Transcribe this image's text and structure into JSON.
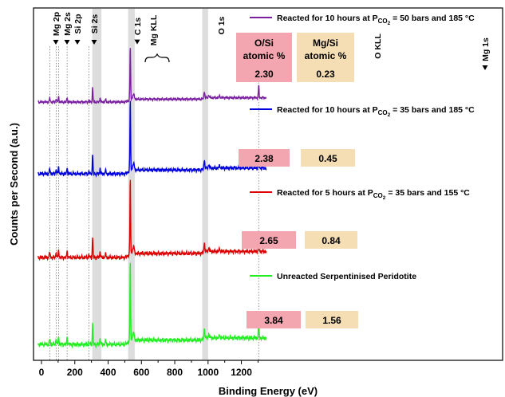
{
  "chart_data": {
    "type": "line",
    "xlabel": "Binding Energy (eV)",
    "ylabel": "Counts per Second (a.u.)",
    "xlim": [
      -20,
      1350
    ],
    "xticks": [
      0,
      200,
      400,
      600,
      800,
      1000,
      1200
    ],
    "series": [
      {
        "name_parts": {
          "pre": "Reacted for 10 hours at P",
          "sub": "CO",
          "subsub": "2",
          "post": " = 50 bars and 185 °C"
        },
        "color": "#7b1fa2",
        "ratios": {
          "O_Si": "2.30",
          "Mg_Si": "0.23"
        }
      },
      {
        "name_parts": {
          "pre": "Reacted for 10 hours at P",
          "sub": "CO",
          "subsub": "2",
          "post": " = 35 bars and 185 °C"
        },
        "color": "#0000dd",
        "ratios": {
          "O_Si": "2.38",
          "Mg_Si": "0.45"
        }
      },
      {
        "name_parts": {
          "pre": "Reacted for 5 hours at P",
          "sub": "CO",
          "subsub": "2",
          "post": " = 35 bars and 155 °C"
        },
        "color": "#dd0000",
        "ratios": {
          "O_Si": "2.65",
          "Mg_Si": "0.84"
        }
      },
      {
        "name_parts": {
          "pre": "Unreacted Serpentinised Peridotite",
          "sub": "",
          "subsub": "",
          "post": ""
        },
        "color": "#22ee22",
        "ratios": {
          "O_Si": "3.84",
          "Mg_Si": "1.56"
        }
      }
    ],
    "peaks": [
      {
        "label": "Mg 2p",
        "energy": 50,
        "style": "dotted"
      },
      {
        "label": "Mg 2s",
        "energy": 88,
        "style": "dotted"
      },
      {
        "label": "Si 2p",
        "energy": 103,
        "style": "dotted"
      },
      {
        "label": "Si 2s",
        "energy": 154,
        "style": "dotted"
      },
      {
        "label": "C 1s",
        "energy": 285,
        "style": "dotted"
      },
      {
        "label": "Mg KLL",
        "range": [
          305,
          360
        ],
        "style": "band"
      },
      {
        "label": "O 1s",
        "range": [
          520,
          560
        ],
        "style": "band"
      },
      {
        "label": "O KLL",
        "range": [
          965,
          1000
        ],
        "style": "band"
      },
      {
        "label": "Mg 1s",
        "energy": 1304,
        "style": "dotted"
      }
    ],
    "ratio_headers": {
      "O_Si": [
        "O/Si",
        "atomic %"
      ],
      "Mg_Si": [
        "Mg/Si",
        "atomic %"
      ]
    },
    "colors": {
      "ratio_o_si": "#f4a6b0",
      "ratio_mg_si": "#f5deb3",
      "band": "#dddddd"
    }
  }
}
